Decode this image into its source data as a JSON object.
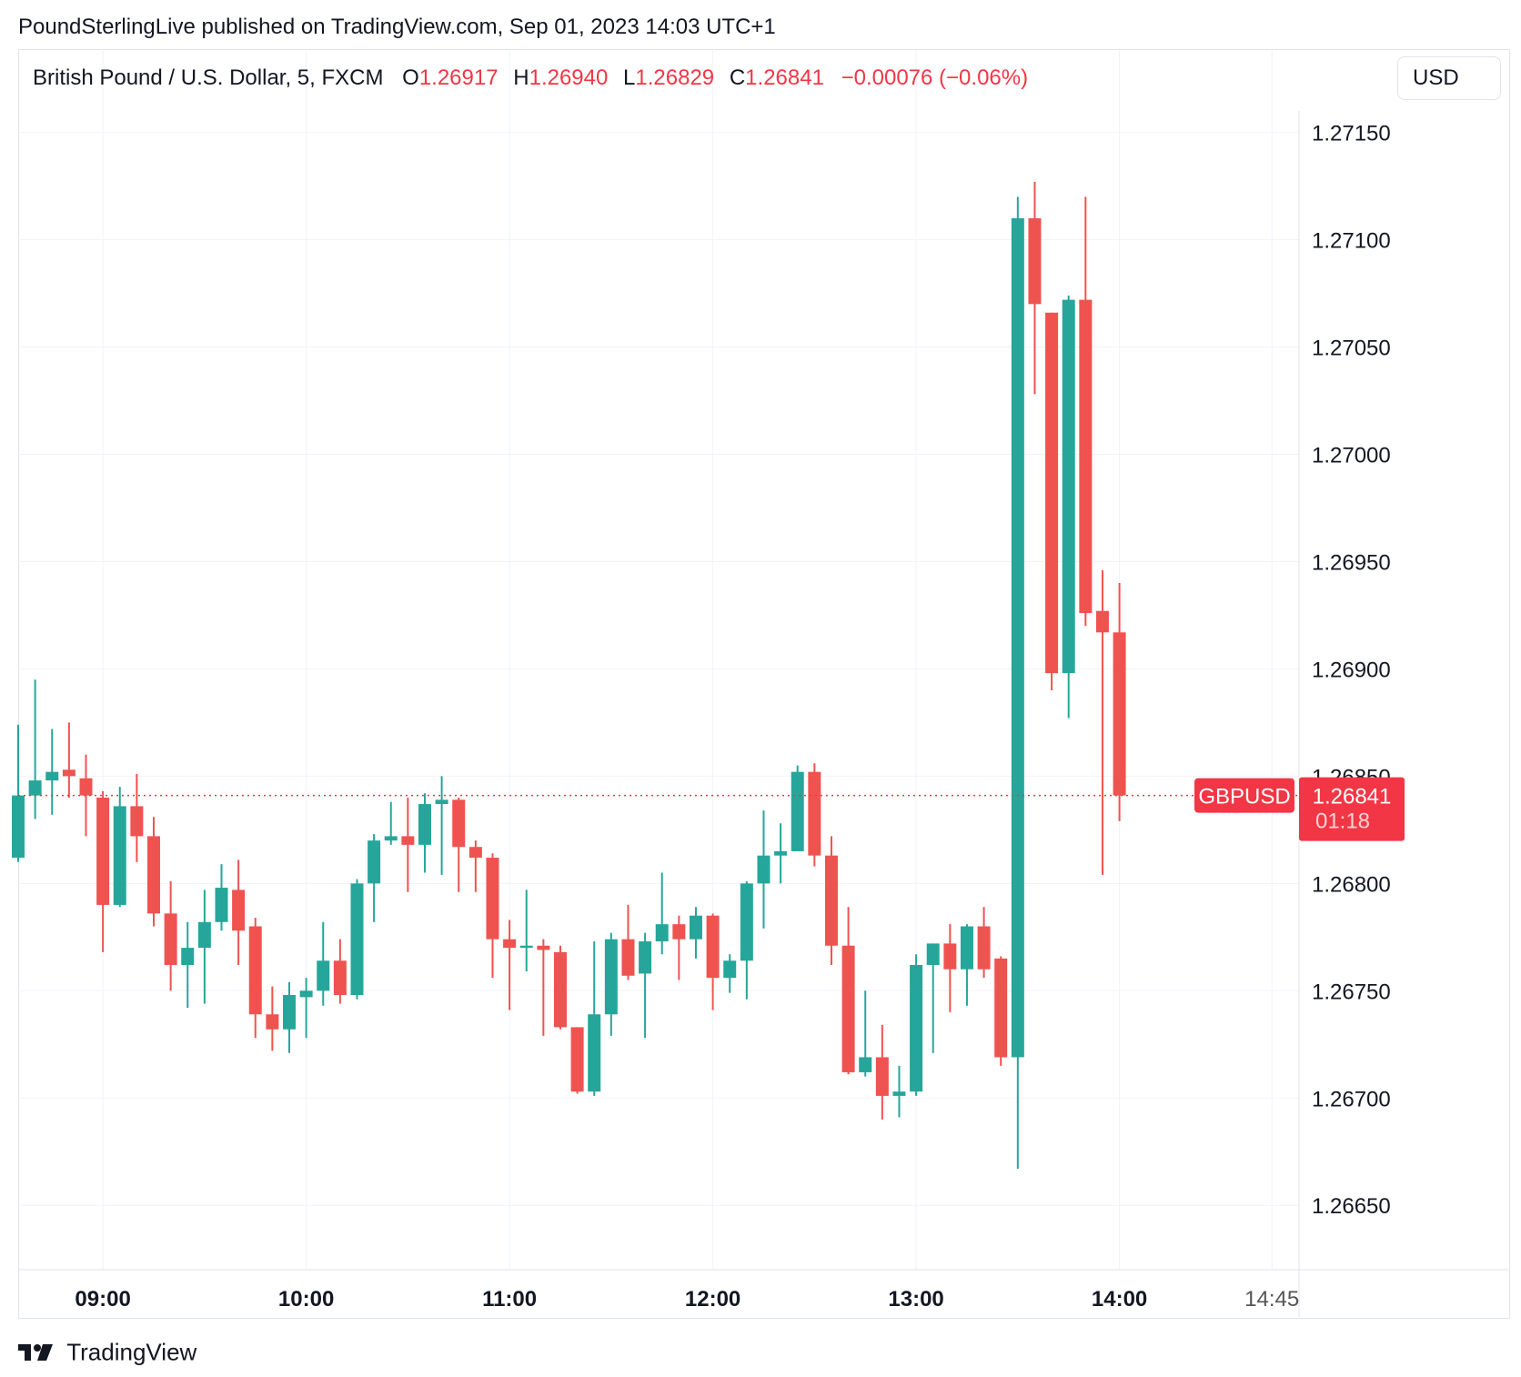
{
  "header": {
    "publisher_line": "PoundSterlingLive published on TradingView.com, Sep 01, 2023 14:03 UTC+1"
  },
  "legend": {
    "symbol": "British Pound / U.S. Dollar, 5, FXCM",
    "o_label": "O",
    "o_value": "1.26917",
    "h_label": "H",
    "h_value": "1.26940",
    "l_label": "L",
    "l_value": "1.26829",
    "c_label": "C",
    "c_value": "1.26841",
    "change": "−0.00076 (−0.06%)"
  },
  "currency_button": "USD",
  "price_tag": {
    "label": "GBPUSD",
    "price": "1.26841",
    "countdown": "01:18"
  },
  "brand": {
    "name": "TradingView"
  },
  "colors": {
    "up": "#26a69a",
    "down": "#ef5350",
    "grid": "#f0f3fa",
    "price_line": "#f23645"
  },
  "chart_data": {
    "type": "candlestick",
    "ylim": [
      1.2662,
      1.2716
    ],
    "y_ticks": [
      "1.26650",
      "1.26700",
      "1.26750",
      "1.26800",
      "1.26850",
      "1.26900",
      "1.26950",
      "1.27000",
      "1.27050",
      "1.27100",
      "1.27150"
    ],
    "x_ticks": [
      {
        "label": "09:00",
        "time": "09:00"
      },
      {
        "label": "10:00",
        "time": "10:00"
      },
      {
        "label": "11:00",
        "time": "11:00"
      },
      {
        "label": "12:00",
        "time": "12:00"
      },
      {
        "label": "13:00",
        "time": "13:00"
      },
      {
        "label": "14:00",
        "time": "14:00"
      },
      {
        "label": "14:45",
        "time": "14:45"
      }
    ],
    "xlim": [
      "08:35",
      "14:53"
    ],
    "interval_minutes": 5,
    "last_price": 1.26841,
    "candles": [
      {
        "t": "08:35",
        "o": 1.26812,
        "h": 1.26874,
        "l": 1.2681,
        "c": 1.26841
      },
      {
        "t": "08:40",
        "o": 1.26841,
        "h": 1.26895,
        "l": 1.2683,
        "c": 1.26848
      },
      {
        "t": "08:45",
        "o": 1.26848,
        "h": 1.26872,
        "l": 1.26832,
        "c": 1.26852
      },
      {
        "t": "08:50",
        "o": 1.26853,
        "h": 1.26875,
        "l": 1.2684,
        "c": 1.2685
      },
      {
        "t": "08:55",
        "o": 1.26849,
        "h": 1.2686,
        "l": 1.26822,
        "c": 1.26841
      },
      {
        "t": "09:00",
        "o": 1.2684,
        "h": 1.26843,
        "l": 1.26768,
        "c": 1.2679
      },
      {
        "t": "09:05",
        "o": 1.2679,
        "h": 1.26845,
        "l": 1.26789,
        "c": 1.26836
      },
      {
        "t": "09:10",
        "o": 1.26836,
        "h": 1.26851,
        "l": 1.2681,
        "c": 1.26822
      },
      {
        "t": "09:15",
        "o": 1.26822,
        "h": 1.26831,
        "l": 1.2678,
        "c": 1.26786
      },
      {
        "t": "09:20",
        "o": 1.26786,
        "h": 1.26801,
        "l": 1.2675,
        "c": 1.26762
      },
      {
        "t": "09:25",
        "o": 1.26762,
        "h": 1.26782,
        "l": 1.26742,
        "c": 1.2677
      },
      {
        "t": "09:30",
        "o": 1.2677,
        "h": 1.26797,
        "l": 1.26744,
        "c": 1.26782
      },
      {
        "t": "09:35",
        "o": 1.26782,
        "h": 1.26809,
        "l": 1.26778,
        "c": 1.26798
      },
      {
        "t": "09:40",
        "o": 1.26797,
        "h": 1.26811,
        "l": 1.26762,
        "c": 1.26778
      },
      {
        "t": "09:45",
        "o": 1.2678,
        "h": 1.26784,
        "l": 1.26728,
        "c": 1.26739
      },
      {
        "t": "09:50",
        "o": 1.26739,
        "h": 1.26752,
        "l": 1.26722,
        "c": 1.26732
      },
      {
        "t": "09:55",
        "o": 1.26732,
        "h": 1.26754,
        "l": 1.26721,
        "c": 1.26748
      },
      {
        "t": "10:00",
        "o": 1.26747,
        "h": 1.26756,
        "l": 1.26728,
        "c": 1.2675
      },
      {
        "t": "10:05",
        "o": 1.2675,
        "h": 1.26782,
        "l": 1.26743,
        "c": 1.26764
      },
      {
        "t": "10:10",
        "o": 1.26764,
        "h": 1.26774,
        "l": 1.26744,
        "c": 1.26748
      },
      {
        "t": "10:15",
        "o": 1.26748,
        "h": 1.26802,
        "l": 1.26746,
        "c": 1.268
      },
      {
        "t": "10:20",
        "o": 1.268,
        "h": 1.26823,
        "l": 1.26782,
        "c": 1.2682
      },
      {
        "t": "10:25",
        "o": 1.2682,
        "h": 1.26838,
        "l": 1.26818,
        "c": 1.26822
      },
      {
        "t": "10:30",
        "o": 1.26822,
        "h": 1.2684,
        "l": 1.26796,
        "c": 1.26818
      },
      {
        "t": "10:35",
        "o": 1.26818,
        "h": 1.26842,
        "l": 1.26805,
        "c": 1.26837
      },
      {
        "t": "10:40",
        "o": 1.26837,
        "h": 1.2685,
        "l": 1.26804,
        "c": 1.26839
      },
      {
        "t": "10:45",
        "o": 1.26839,
        "h": 1.2684,
        "l": 1.26796,
        "c": 1.26817
      },
      {
        "t": "10:50",
        "o": 1.26817,
        "h": 1.2682,
        "l": 1.26796,
        "c": 1.26812
      },
      {
        "t": "10:55",
        "o": 1.26812,
        "h": 1.26814,
        "l": 1.26756,
        "c": 1.26774
      },
      {
        "t": "11:00",
        "o": 1.26774,
        "h": 1.26783,
        "l": 1.26741,
        "c": 1.2677
      },
      {
        "t": "11:05",
        "o": 1.2677,
        "h": 1.26797,
        "l": 1.26759,
        "c": 1.26771
      },
      {
        "t": "11:10",
        "o": 1.26771,
        "h": 1.26774,
        "l": 1.26729,
        "c": 1.26769
      },
      {
        "t": "11:15",
        "o": 1.26768,
        "h": 1.26771,
        "l": 1.26732,
        "c": 1.26733
      },
      {
        "t": "11:20",
        "o": 1.26733,
        "h": 1.26733,
        "l": 1.26702,
        "c": 1.26703
      },
      {
        "t": "11:25",
        "o": 1.26703,
        "h": 1.26773,
        "l": 1.26701,
        "c": 1.26739
      },
      {
        "t": "11:30",
        "o": 1.26739,
        "h": 1.26777,
        "l": 1.26729,
        "c": 1.26774
      },
      {
        "t": "11:35",
        "o": 1.26774,
        "h": 1.2679,
        "l": 1.26755,
        "c": 1.26757
      },
      {
        "t": "11:40",
        "o": 1.26758,
        "h": 1.26777,
        "l": 1.26728,
        "c": 1.26773
      },
      {
        "t": "11:45",
        "o": 1.26773,
        "h": 1.26805,
        "l": 1.26767,
        "c": 1.26781
      },
      {
        "t": "11:50",
        "o": 1.26781,
        "h": 1.26785,
        "l": 1.26755,
        "c": 1.26774
      },
      {
        "t": "11:55",
        "o": 1.26774,
        "h": 1.26789,
        "l": 1.26765,
        "c": 1.26785
      },
      {
        "t": "12:00",
        "o": 1.26785,
        "h": 1.26786,
        "l": 1.26741,
        "c": 1.26756
      },
      {
        "t": "12:05",
        "o": 1.26756,
        "h": 1.26767,
        "l": 1.26749,
        "c": 1.26764
      },
      {
        "t": "12:10",
        "o": 1.26764,
        "h": 1.26801,
        "l": 1.26746,
        "c": 1.268
      },
      {
        "t": "12:15",
        "o": 1.268,
        "h": 1.26834,
        "l": 1.26779,
        "c": 1.26813
      },
      {
        "t": "12:20",
        "o": 1.26813,
        "h": 1.26828,
        "l": 1.268,
        "c": 1.26815
      },
      {
        "t": "12:25",
        "o": 1.26815,
        "h": 1.26855,
        "l": 1.26815,
        "c": 1.26852
      },
      {
        "t": "12:30",
        "o": 1.26852,
        "h": 1.26856,
        "l": 1.26808,
        "c": 1.26813
      },
      {
        "t": "12:35",
        "o": 1.26813,
        "h": 1.26822,
        "l": 1.26762,
        "c": 1.26771
      },
      {
        "t": "12:40",
        "o": 1.26771,
        "h": 1.26789,
        "l": 1.26711,
        "c": 1.26712
      },
      {
        "t": "12:45",
        "o": 1.26712,
        "h": 1.2675,
        "l": 1.2671,
        "c": 1.26719
      },
      {
        "t": "12:50",
        "o": 1.26719,
        "h": 1.26734,
        "l": 1.2669,
        "c": 1.26701
      },
      {
        "t": "12:55",
        "o": 1.26701,
        "h": 1.26715,
        "l": 1.26691,
        "c": 1.26703
      },
      {
        "t": "13:00",
        "o": 1.26703,
        "h": 1.26767,
        "l": 1.26701,
        "c": 1.26762
      },
      {
        "t": "13:05",
        "o": 1.26762,
        "h": 1.26772,
        "l": 1.26721,
        "c": 1.26772
      },
      {
        "t": "13:10",
        "o": 1.26772,
        "h": 1.26781,
        "l": 1.2674,
        "c": 1.2676
      },
      {
        "t": "13:15",
        "o": 1.2676,
        "h": 1.26781,
        "l": 1.26743,
        "c": 1.2678
      },
      {
        "t": "13:20",
        "o": 1.2678,
        "h": 1.26789,
        "l": 1.26756,
        "c": 1.2676
      },
      {
        "t": "13:25",
        "o": 1.26765,
        "h": 1.26766,
        "l": 1.26715,
        "c": 1.26719
      },
      {
        "t": "13:30",
        "o": 1.26719,
        "h": 1.2712,
        "l": 1.26667,
        "c": 1.2711
      },
      {
        "t": "13:35",
        "o": 1.2711,
        "h": 1.27127,
        "l": 1.27028,
        "c": 1.2707
      },
      {
        "t": "13:40",
        "o": 1.27066,
        "h": 1.27066,
        "l": 1.2689,
        "c": 1.26898
      },
      {
        "t": "13:45",
        "o": 1.26898,
        "h": 1.27074,
        "l": 1.26877,
        "c": 1.27072
      },
      {
        "t": "13:50",
        "o": 1.27072,
        "h": 1.2712,
        "l": 1.2692,
        "c": 1.26926
      },
      {
        "t": "13:55",
        "o": 1.26927,
        "h": 1.26946,
        "l": 1.26804,
        "c": 1.26917
      },
      {
        "t": "14:00",
        "o": 1.26917,
        "h": 1.2694,
        "l": 1.26829,
        "c": 1.26841
      }
    ]
  }
}
